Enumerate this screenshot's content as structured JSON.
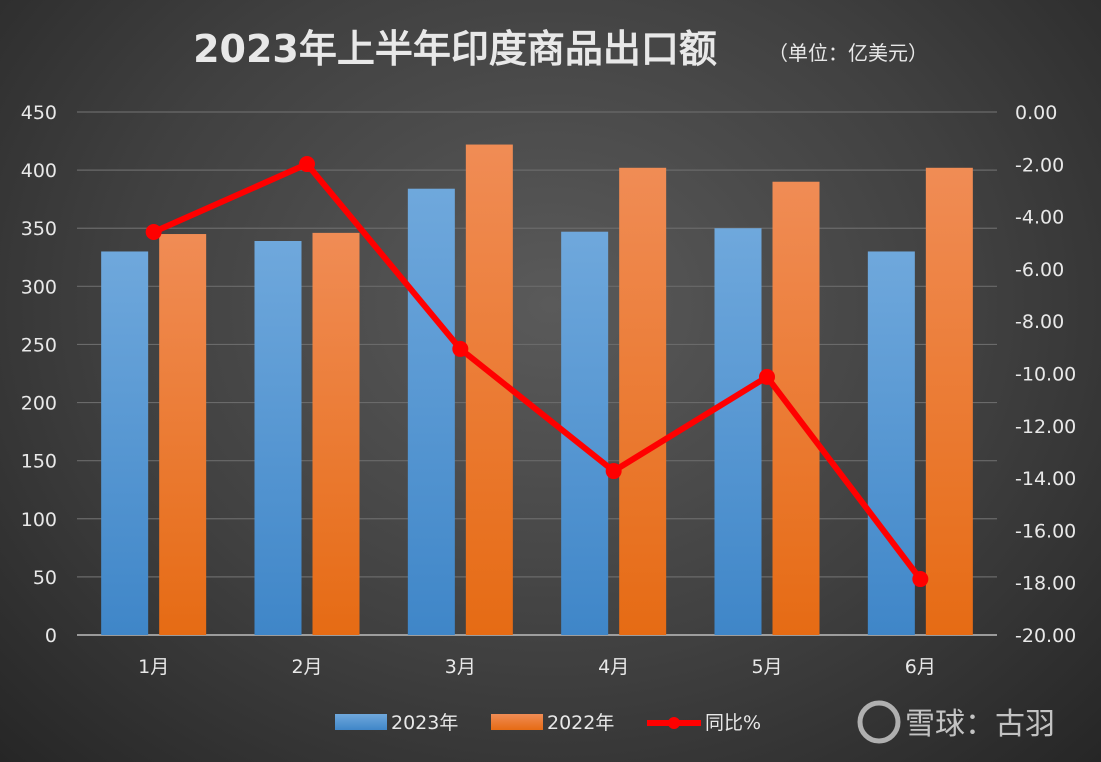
{
  "chart_data": {
    "type": "bar",
    "title": "2023年上半年印度商品出口额",
    "subtitle": "（单位：亿美元）",
    "categories": [
      "1月",
      "2月",
      "3月",
      "4月",
      "5月",
      "6月"
    ],
    "series": [
      {
        "name": "2023年",
        "type": "bar",
        "axis": "left",
        "color": "#5b9bd5",
        "values": [
          330,
          339,
          384,
          347,
          350,
          330
        ]
      },
      {
        "name": "2022年",
        "type": "bar",
        "axis": "left",
        "color": "#ed7d31",
        "values": [
          345,
          346,
          422,
          402,
          390,
          402
        ]
      },
      {
        "name": "同比%",
        "type": "line",
        "axis": "right",
        "color": "#ff0000",
        "values": [
          -4.59,
          -1.99,
          -9.06,
          -13.73,
          -10.13,
          -17.86
        ]
      }
    ],
    "left_axis": {
      "ylim": [
        0,
        450
      ],
      "ticks": [
        "0",
        "50",
        "100",
        "150",
        "200",
        "250",
        "300",
        "350",
        "400",
        "450"
      ]
    },
    "right_axis": {
      "ylim": [
        -20,
        0
      ],
      "ticks": [
        "-20.00",
        "-18.00",
        "-16.00",
        "-14.00",
        "-12.00",
        "-10.00",
        "-8.00",
        "-6.00",
        "-4.00",
        "-2.00",
        "0.00"
      ]
    },
    "grid": true,
    "legend": "bottom"
  },
  "watermark": "雪球：古羽"
}
